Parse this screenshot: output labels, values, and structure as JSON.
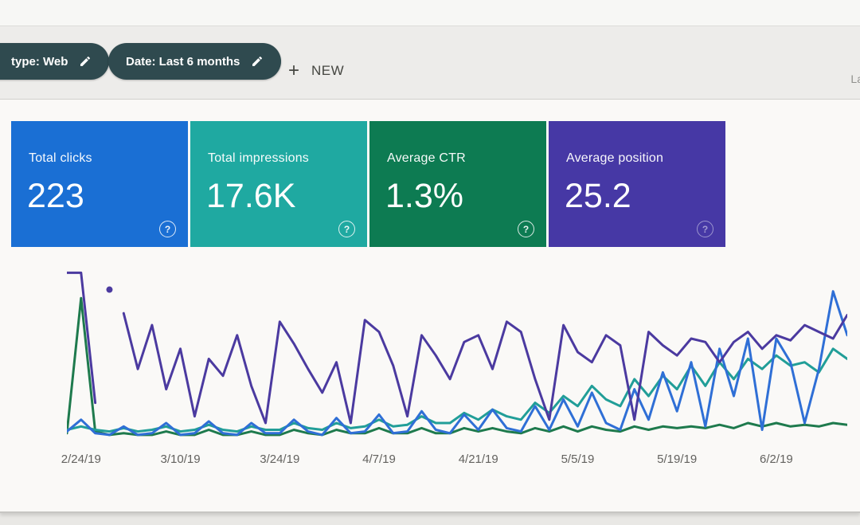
{
  "toolbar": {
    "filters": [
      {
        "label": "type: Web"
      },
      {
        "label": "Date: Last 6 months"
      }
    ],
    "new_plus": "+",
    "new_label": "NEW",
    "right_partial_text": "La"
  },
  "help_glyph": "?",
  "cards": [
    {
      "label": "Total clicks",
      "value": "223",
      "color": "#1a6fd4"
    },
    {
      "label": "Total impressions",
      "value": "17.6K",
      "color": "#1fa9a1"
    },
    {
      "label": "Average CTR",
      "value": "1.3%",
      "color": "#0d7b52"
    },
    {
      "label": "Average position",
      "value": "25.2",
      "color": "#4638a5"
    }
  ],
  "chart_data": {
    "type": "line",
    "title": "",
    "xlabel": "",
    "ylabel": "",
    "grid": false,
    "legend_position": "none",
    "y_units": "normalized 0-100 percent of plot height; each series uses its own hidden scale as in Search Console",
    "ylim": [
      0,
      100
    ],
    "x_ticks": [
      {
        "index": 1,
        "label": "2/24/19"
      },
      {
        "index": 8,
        "label": "3/10/19"
      },
      {
        "index": 15,
        "label": "3/24/19"
      },
      {
        "index": 22,
        "label": "4/7/19"
      },
      {
        "index": 29,
        "label": "4/21/19"
      },
      {
        "index": 36,
        "label": "5/5/19"
      },
      {
        "index": 43,
        "label": "5/19/19"
      },
      {
        "index": 50,
        "label": "6/2/19"
      }
    ],
    "series": [
      {
        "id": "ctr",
        "name": "Average CTR",
        "color": "#1e7a4d",
        "values": [
          2,
          82,
          3,
          1,
          2,
          1,
          1,
          3,
          1,
          1,
          4,
          1,
          1,
          3,
          1,
          1,
          4,
          2,
          1,
          4,
          2,
          2,
          5,
          2,
          2,
          5,
          2,
          2,
          5,
          3,
          5,
          3,
          2,
          5,
          3,
          6,
          3,
          6,
          4,
          3,
          6,
          4,
          6,
          5,
          6,
          5,
          7,
          5,
          8,
          6,
          8,
          6,
          7,
          6,
          8,
          7
        ]
      },
      {
        "id": "impressions",
        "name": "Total impressions",
        "color": "#219e98",
        "values": [
          4,
          6,
          4,
          3,
          5,
          3,
          4,
          6,
          3,
          4,
          7,
          4,
          3,
          6,
          4,
          4,
          8,
          5,
          4,
          8,
          5,
          6,
          10,
          6,
          7,
          12,
          8,
          8,
          14,
          10,
          16,
          12,
          10,
          20,
          14,
          24,
          18,
          30,
          22,
          18,
          34,
          24,
          36,
          28,
          42,
          30,
          44,
          34,
          46,
          40,
          48,
          42,
          44,
          38,
          52,
          46
        ]
      },
      {
        "id": "clicks",
        "name": "Total clicks",
        "color": "#2f6fd6",
        "values": [
          3,
          10,
          2,
          1,
          6,
          1,
          2,
          8,
          1,
          2,
          9,
          2,
          1,
          8,
          2,
          2,
          10,
          3,
          1,
          11,
          2,
          3,
          13,
          2,
          3,
          15,
          4,
          2,
          13,
          4,
          16,
          5,
          3,
          18,
          4,
          22,
          6,
          26,
          8,
          4,
          28,
          10,
          38,
          15,
          44,
          6,
          52,
          24,
          58,
          4,
          58,
          44,
          8,
          40,
          86,
          60
        ]
      },
      {
        "id": "position",
        "name": "Average position",
        "color": "#4b3aa0",
        "segments": [
          [
            0,
            2
          ],
          [
            4,
            55
          ]
        ],
        "dot_index": 3,
        "values": [
          97,
          97,
          20,
          87,
          73,
          40,
          66,
          28,
          52,
          12,
          46,
          36,
          60,
          30,
          8,
          68,
          55,
          40,
          26,
          44,
          8,
          69,
          62,
          42,
          12,
          60,
          48,
          34,
          56,
          60,
          40,
          68,
          62,
          34,
          10,
          66,
          50,
          44,
          60,
          54,
          10,
          62,
          54,
          48,
          58,
          56,
          44,
          56,
          62,
          52,
          60,
          57,
          66,
          62,
          58,
          72
        ]
      }
    ]
  }
}
